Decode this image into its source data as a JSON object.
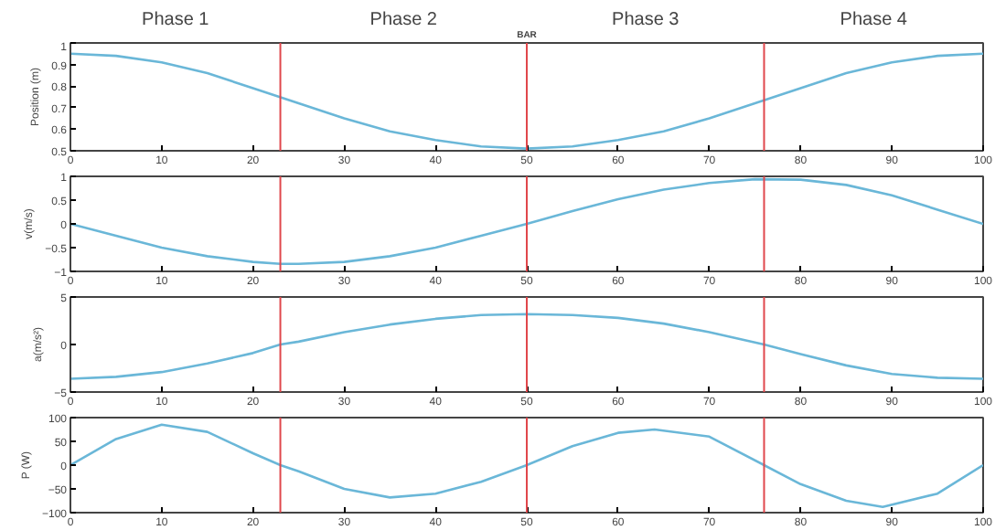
{
  "chart_data": [
    {
      "type": "line",
      "ylabel": "Position (m)",
      "annotations": [
        "Phase 1",
        "Phase 2",
        "Phase 3",
        "Phase 4"
      ],
      "x": [
        0,
        5,
        10,
        15,
        20,
        25,
        30,
        35,
        40,
        45,
        50,
        55,
        60,
        65,
        70,
        75,
        80,
        85,
        90,
        95,
        100
      ],
      "series": [
        {
          "color": "#6ab7d8",
          "values": [
            0.95,
            0.94,
            0.91,
            0.86,
            0.79,
            0.72,
            0.65,
            0.59,
            0.55,
            0.52,
            0.51,
            0.52,
            0.55,
            0.59,
            0.65,
            0.72,
            0.79,
            0.86,
            0.91,
            0.94,
            0.95
          ]
        }
      ],
      "xlim": [
        0,
        100
      ],
      "xticks": [
        0,
        10,
        20,
        30,
        40,
        50,
        60,
        70,
        80,
        90,
        100
      ],
      "ylim": [
        0.5,
        1
      ],
      "yticks": [
        0.5,
        0.6,
        0.7,
        0.8,
        0.9,
        1
      ],
      "ref_lines": [
        {
          "axis": "x",
          "value": 23,
          "color": "#e0474c"
        },
        {
          "axis": "x",
          "value": 50,
          "label": "BAR",
          "color": "#e0474c"
        },
        {
          "axis": "x",
          "value": 76,
          "color": "#e0474c"
        }
      ],
      "grid": false,
      "marker": "none",
      "line_style": "solid"
    },
    {
      "type": "line",
      "ylabel": "v(m/s)",
      "x": [
        0,
        5,
        10,
        15,
        20,
        23,
        25,
        30,
        35,
        40,
        45,
        50,
        55,
        60,
        65,
        70,
        75,
        80,
        85,
        90,
        95,
        100
      ],
      "series": [
        {
          "color": "#6ab7d8",
          "values": [
            0,
            -0.25,
            -0.5,
            -0.68,
            -0.8,
            -0.84,
            -0.84,
            -0.8,
            -0.68,
            -0.5,
            -0.25,
            0,
            0.27,
            0.52,
            0.72,
            0.86,
            0.94,
            0.93,
            0.82,
            0.6,
            0.3,
            0
          ]
        }
      ],
      "xlim": [
        0,
        100
      ],
      "xticks": [
        0,
        10,
        20,
        30,
        40,
        50,
        60,
        70,
        80,
        90,
        100
      ],
      "ylim": [
        -1,
        1
      ],
      "yticks": [
        -1,
        -0.5,
        0,
        0.5,
        1
      ],
      "ref_lines": [
        {
          "axis": "x",
          "value": 23,
          "color": "#e0474c"
        },
        {
          "axis": "x",
          "value": 50,
          "color": "#e0474c"
        },
        {
          "axis": "x",
          "value": 76,
          "color": "#e0474c"
        }
      ],
      "grid": false,
      "marker": "none",
      "line_style": "solid"
    },
    {
      "type": "line",
      "ylabel": "a(m/s²)",
      "x": [
        0,
        5,
        10,
        15,
        20,
        23,
        25,
        30,
        35,
        40,
        45,
        50,
        55,
        60,
        65,
        70,
        76,
        80,
        85,
        90,
        95,
        100
      ],
      "series": [
        {
          "color": "#6ab7d8",
          "values": [
            -3.6,
            -3.4,
            -2.9,
            -2.0,
            -0.9,
            0,
            0.3,
            1.3,
            2.1,
            2.7,
            3.1,
            3.2,
            3.1,
            2.8,
            2.2,
            1.3,
            0,
            -1.0,
            -2.2,
            -3.1,
            -3.5,
            -3.6
          ]
        }
      ],
      "xlim": [
        0,
        100
      ],
      "xticks": [
        0,
        10,
        20,
        30,
        40,
        50,
        60,
        70,
        80,
        90,
        100
      ],
      "ylim": [
        -5,
        5
      ],
      "yticks": [
        -5,
        0,
        5
      ],
      "ref_lines": [
        {
          "axis": "x",
          "value": 23,
          "color": "#e0474c"
        },
        {
          "axis": "x",
          "value": 50,
          "color": "#e0474c"
        },
        {
          "axis": "x",
          "value": 76,
          "color": "#e0474c"
        }
      ],
      "grid": false,
      "marker": "none",
      "line_style": "solid"
    },
    {
      "type": "line",
      "ylabel": "P (W)",
      "x": [
        0,
        5,
        10,
        15,
        20,
        23,
        25,
        30,
        35,
        40,
        45,
        50,
        55,
        60,
        64,
        70,
        76,
        80,
        85,
        89,
        95,
        100
      ],
      "series": [
        {
          "color": "#6ab7d8",
          "values": [
            0,
            55,
            85,
            70,
            25,
            0,
            -13,
            -50,
            -68,
            -60,
            -35,
            0,
            40,
            68,
            75,
            60,
            0,
            -40,
            -75,
            -88,
            -60,
            0
          ]
        }
      ],
      "xlim": [
        0,
        100
      ],
      "xticks": [
        0,
        10,
        20,
        30,
        40,
        50,
        60,
        70,
        80,
        90,
        100
      ],
      "ylim": [
        -100,
        100
      ],
      "yticks": [
        -100,
        -50,
        0,
        50,
        100
      ],
      "ref_lines": [
        {
          "axis": "x",
          "value": 23,
          "color": "#e0474c"
        },
        {
          "axis": "x",
          "value": 50,
          "color": "#e0474c"
        },
        {
          "axis": "x",
          "value": 76,
          "color": "#e0474c"
        }
      ],
      "grid": false,
      "marker": "none",
      "line_style": "solid"
    }
  ]
}
